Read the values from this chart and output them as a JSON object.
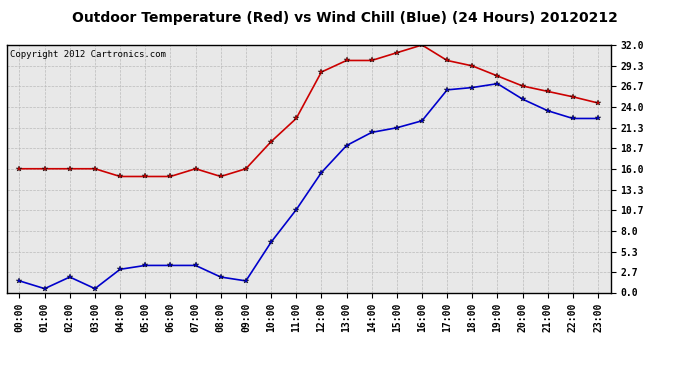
{
  "title": "Outdoor Temperature (Red) vs Wind Chill (Blue) (24 Hours) 20120212",
  "copyright": "Copyright 2012 Cartronics.com",
  "hours": [
    "00:00",
    "01:00",
    "02:00",
    "03:00",
    "04:00",
    "05:00",
    "06:00",
    "07:00",
    "08:00",
    "09:00",
    "10:00",
    "11:00",
    "12:00",
    "13:00",
    "14:00",
    "15:00",
    "16:00",
    "17:00",
    "18:00",
    "19:00",
    "20:00",
    "21:00",
    "22:00",
    "23:00"
  ],
  "red_data": [
    16.0,
    16.0,
    16.0,
    16.0,
    15.0,
    15.0,
    15.0,
    16.0,
    15.0,
    16.0,
    19.5,
    22.5,
    28.5,
    30.0,
    30.0,
    31.0,
    32.0,
    30.0,
    29.3,
    28.0,
    26.7,
    26.0,
    25.3,
    24.5
  ],
  "blue_data": [
    1.5,
    0.5,
    2.0,
    0.5,
    3.0,
    3.5,
    3.5,
    3.5,
    2.0,
    1.5,
    6.5,
    10.7,
    15.5,
    19.0,
    20.7,
    21.3,
    22.2,
    26.2,
    26.5,
    27.0,
    25.0,
    23.5,
    22.5,
    22.5
  ],
  "y_ticks": [
    0.0,
    2.7,
    5.3,
    8.0,
    10.7,
    13.3,
    16.0,
    18.7,
    21.3,
    24.0,
    26.7,
    29.3,
    32.0
  ],
  "ylim": [
    0.0,
    32.0
  ],
  "red_color": "#cc0000",
  "blue_color": "#0000cc",
  "grid_color": "#bbbbbb",
  "bg_color": "#e8e8e8",
  "title_fontsize": 10,
  "copyright_fontsize": 6.5,
  "tick_fontsize": 7,
  "marker": "*",
  "markersize": 4
}
